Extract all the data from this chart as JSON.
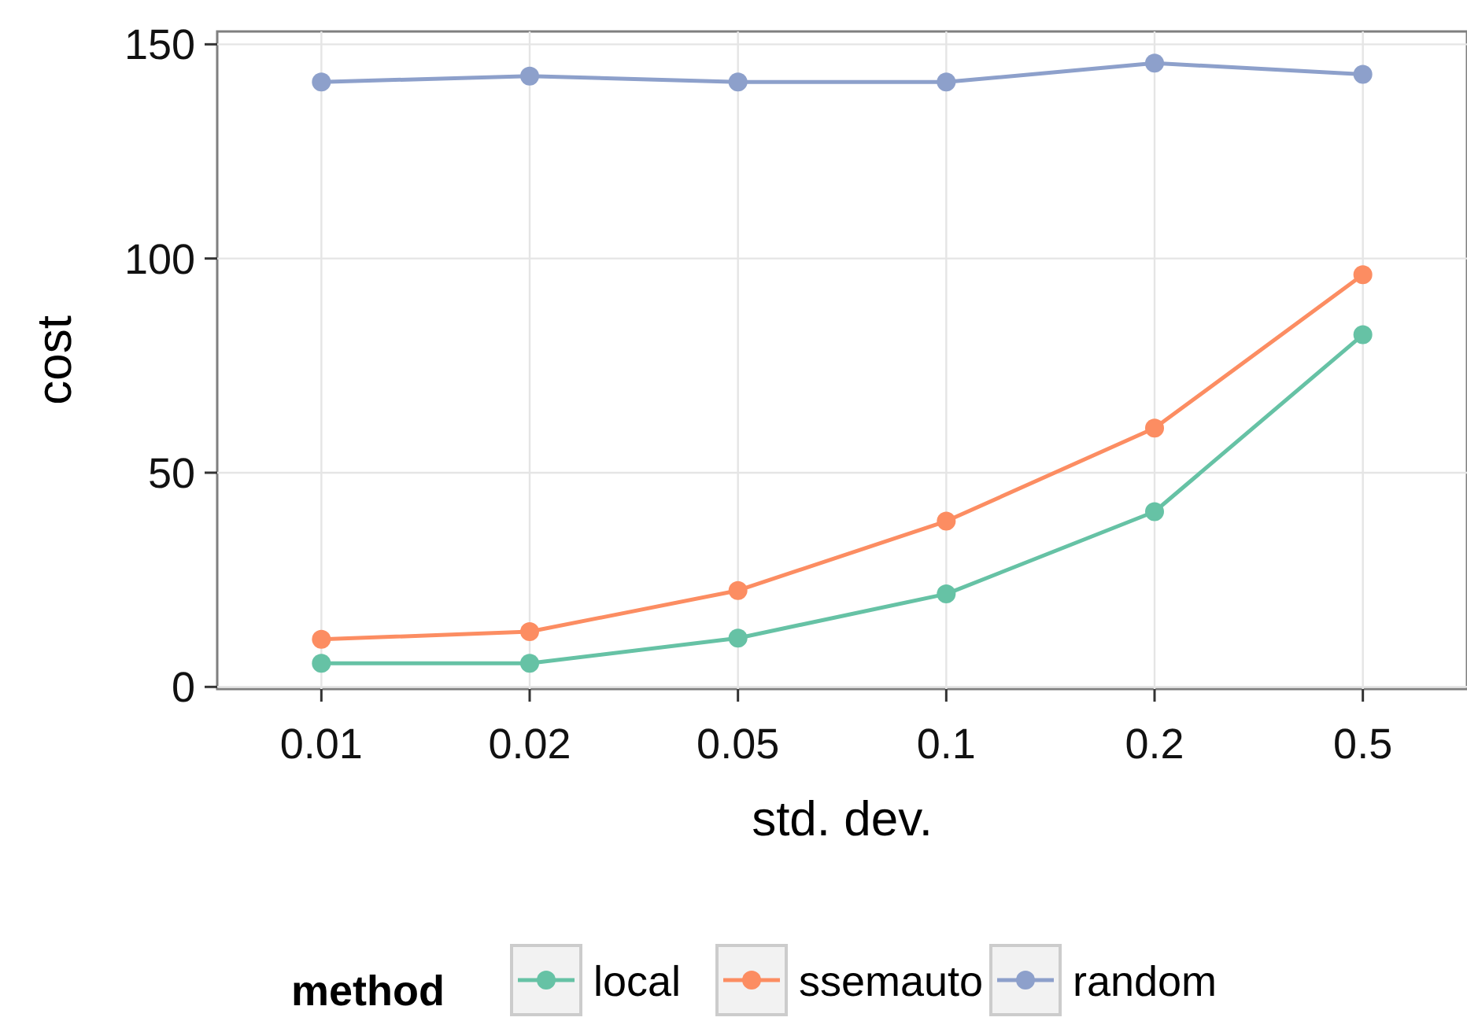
{
  "chart_data": {
    "type": "line",
    "xlabel": "std. dev.",
    "ylabel": "cost",
    "legend_title": "method",
    "categories": [
      "0.01",
      "0.02",
      "0.05",
      "0.1",
      "0.2",
      "0.5"
    ],
    "series": [
      {
        "name": "local",
        "color": "#66c2a5",
        "values": [
          5.5,
          5.5,
          11.4,
          21.7,
          40.9,
          82.2
        ]
      },
      {
        "name": "ssemauto",
        "color": "#fc8d62",
        "values": [
          11.1,
          12.9,
          22.5,
          38.7,
          60.4,
          96.2
        ]
      },
      {
        "name": "random",
        "color": "#8da0cb",
        "values": [
          141.2,
          142.6,
          141.2,
          141.2,
          145.6,
          143.0
        ]
      }
    ],
    "ylim": [
      -0.5,
      153
    ],
    "yticks": [
      0,
      50,
      100,
      150
    ],
    "grid": true,
    "legend": "bottom",
    "marker": "circle",
    "line_style": "solid"
  }
}
